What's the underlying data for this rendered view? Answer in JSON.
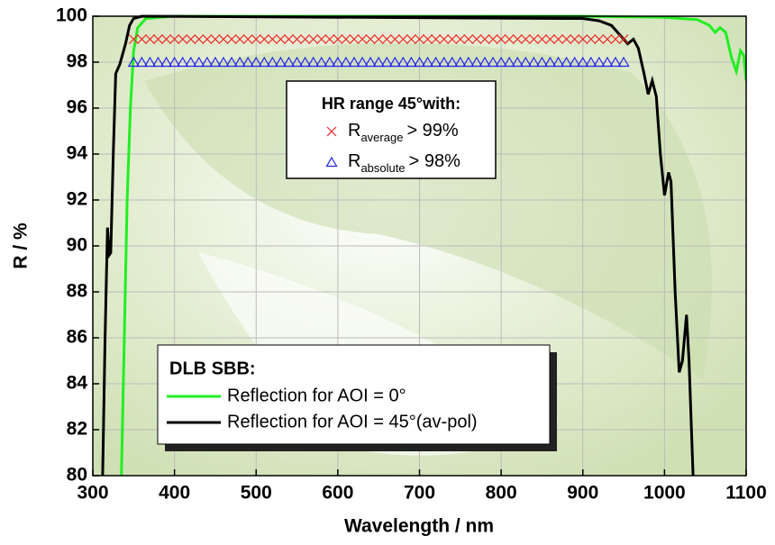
{
  "chart_data": {
    "type": "line",
    "xlabel": "Wavelength / nm",
    "ylabel": "R / %",
    "xlim": [
      300,
      1100
    ],
    "xticks": [
      300,
      400,
      500,
      600,
      700,
      800,
      900,
      1000,
      1100
    ],
    "ylim": [
      80,
      100
    ],
    "yticks": [
      80,
      82,
      84,
      86,
      88,
      90,
      92,
      94,
      96,
      98,
      100
    ],
    "grid": true,
    "legend_title": "DLB SBB:",
    "series": [
      {
        "name": "Reflection for AOI = 0°",
        "color": "#22ee22",
        "x": [
          335,
          338,
          342,
          346,
          350,
          355,
          365,
          400,
          900,
          1000,
          1040,
          1055,
          1062,
          1068,
          1075,
          1082,
          1088,
          1093,
          1097,
          1100
        ],
        "values": [
          80,
          85,
          92,
          96,
          98.5,
          99.5,
          99.9,
          100,
          100,
          99.95,
          99.85,
          99.6,
          99.3,
          99.5,
          99.3,
          98.2,
          97.6,
          98.5,
          98.3,
          97.2
        ]
      },
      {
        "name": "Reflection for AOI = 45°(av-pol)",
        "color": "#000000",
        "x": [
          312,
          315,
          318,
          320,
          322,
          325,
          328,
          333,
          340,
          345,
          350,
          360,
          880,
          900,
          920,
          935,
          945,
          955,
          962,
          968,
          975,
          980,
          985,
          990,
          995,
          1000,
          1005,
          1008,
          1013,
          1018,
          1022,
          1027,
          1030,
          1035
        ],
        "values": [
          80,
          86,
          90.8,
          89.6,
          89.7,
          94,
          97.5,
          97.9,
          98.8,
          99.6,
          99.9,
          100,
          99.9,
          99.9,
          99.8,
          99.6,
          99.2,
          98.8,
          99,
          98.6,
          97.5,
          96.6,
          97.2,
          96.5,
          94,
          92.2,
          93.2,
          92.8,
          88,
          84.5,
          85,
          87,
          85,
          80
        ]
      }
    ],
    "hr_title": "HR range 45°with:",
    "marker_series": [
      {
        "name": "R",
        "name_sub": "average",
        "name_suffix": "> 99%",
        "color": "#ee2222",
        "marker": "x",
        "x": [
          350,
          360,
          370,
          380,
          390,
          400,
          410,
          420,
          430,
          440,
          450,
          460,
          470,
          480,
          490,
          500,
          510,
          520,
          530,
          540,
          550,
          560,
          570,
          580,
          590,
          600,
          610,
          620,
          630,
          640,
          650,
          660,
          670,
          680,
          690,
          700,
          710,
          720,
          730,
          740,
          750,
          760,
          770,
          780,
          790,
          800,
          810,
          820,
          830,
          840,
          850,
          860,
          870,
          880,
          890,
          900,
          910,
          920,
          930,
          940,
          950
        ],
        "values": [
          99,
          99,
          99,
          99,
          99,
          99,
          99,
          99,
          99,
          99,
          99,
          99,
          99,
          99,
          99,
          99,
          99,
          99,
          99,
          99,
          99,
          99,
          99,
          99,
          99,
          99,
          99,
          99,
          99,
          99,
          99,
          99,
          99,
          99,
          99,
          99,
          99,
          99,
          99,
          99,
          99,
          99,
          99,
          99,
          99,
          99,
          99,
          99,
          99,
          99,
          99,
          99,
          99,
          99,
          99,
          99,
          99,
          99,
          99,
          99,
          99
        ]
      },
      {
        "name": "R",
        "name_sub": "absolute",
        "name_suffix": "> 98%",
        "color": "#2222ee",
        "marker": "triangle",
        "x": [
          350,
          360,
          370,
          380,
          390,
          400,
          410,
          420,
          430,
          440,
          450,
          460,
          470,
          480,
          490,
          500,
          510,
          520,
          530,
          540,
          550,
          560,
          570,
          580,
          590,
          600,
          610,
          620,
          630,
          640,
          650,
          660,
          670,
          680,
          690,
          700,
          710,
          720,
          730,
          740,
          750,
          760,
          770,
          780,
          790,
          800,
          810,
          820,
          830,
          840,
          850,
          860,
          870,
          880,
          890,
          900,
          910,
          920,
          930,
          940,
          950
        ],
        "values": [
          98,
          98,
          98,
          98,
          98,
          98,
          98,
          98,
          98,
          98,
          98,
          98,
          98,
          98,
          98,
          98,
          98,
          98,
          98,
          98,
          98,
          98,
          98,
          98,
          98,
          98,
          98,
          98,
          98,
          98,
          98,
          98,
          98,
          98,
          98,
          98,
          98,
          98,
          98,
          98,
          98,
          98,
          98,
          98,
          98,
          98,
          98,
          98,
          98,
          98,
          98,
          98,
          98,
          98,
          98,
          98,
          98,
          98,
          98,
          98,
          98
        ]
      }
    ]
  }
}
